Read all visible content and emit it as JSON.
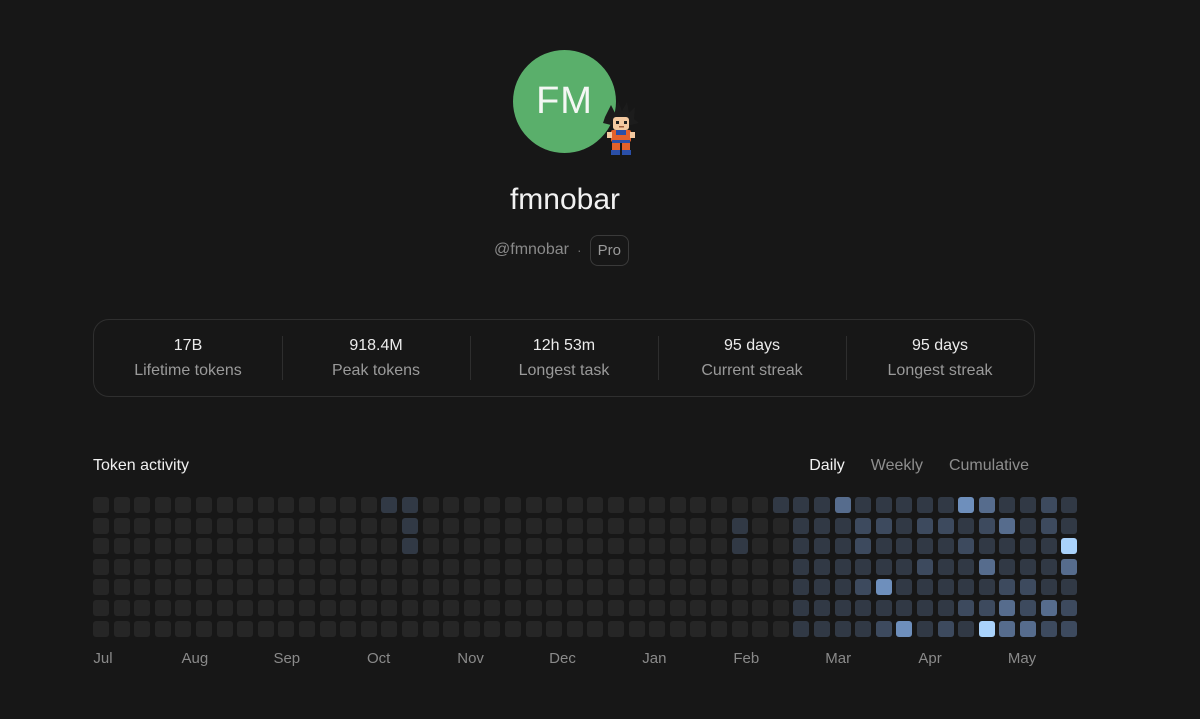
{
  "profile": {
    "initials": "FM",
    "avatar_color": "#5aaf6b",
    "display_name": "fmnobar",
    "handle": "@fmnobar",
    "separator": "·",
    "plan": "Pro",
    "badge_icon": "goku-sprite-icon"
  },
  "stats": [
    {
      "value": "17B",
      "label": "Lifetime tokens"
    },
    {
      "value": "918.4M",
      "label": "Peak tokens"
    },
    {
      "value": "12h 53m",
      "label": "Longest task"
    },
    {
      "value": "95 days",
      "label": "Current streak"
    },
    {
      "value": "95 days",
      "label": "Longest streak"
    }
  ],
  "activity": {
    "title": "Token activity",
    "tabs": [
      {
        "label": "Daily",
        "active": true
      },
      {
        "label": "Weekly",
        "active": false
      },
      {
        "label": "Cumulative",
        "active": false
      }
    ],
    "months": [
      "Jul",
      "Aug",
      "Sep",
      "Oct",
      "Nov",
      "Dec",
      "Jan",
      "Feb",
      "Mar",
      "Apr",
      "May"
    ],
    "level_colors": [
      "#262626",
      "#313945",
      "#3d4a5e",
      "#566c8d",
      "#6e8fbc",
      "#a9d2fb"
    ],
    "heatmap_levels": [
      "000000000000001100000000000000000111311111431121",
      "000000000000000100000000000000010011122122123121",
      "000000000000000100000000000000010011121111211115",
      "000000000000000000000000000000000011111121131113",
      "000000000000000000000000000000000011124111112211",
      "000000000000000000000000000000000011111111223232",
      "000000000000000000000000000000000011112412153322"
    ]
  }
}
